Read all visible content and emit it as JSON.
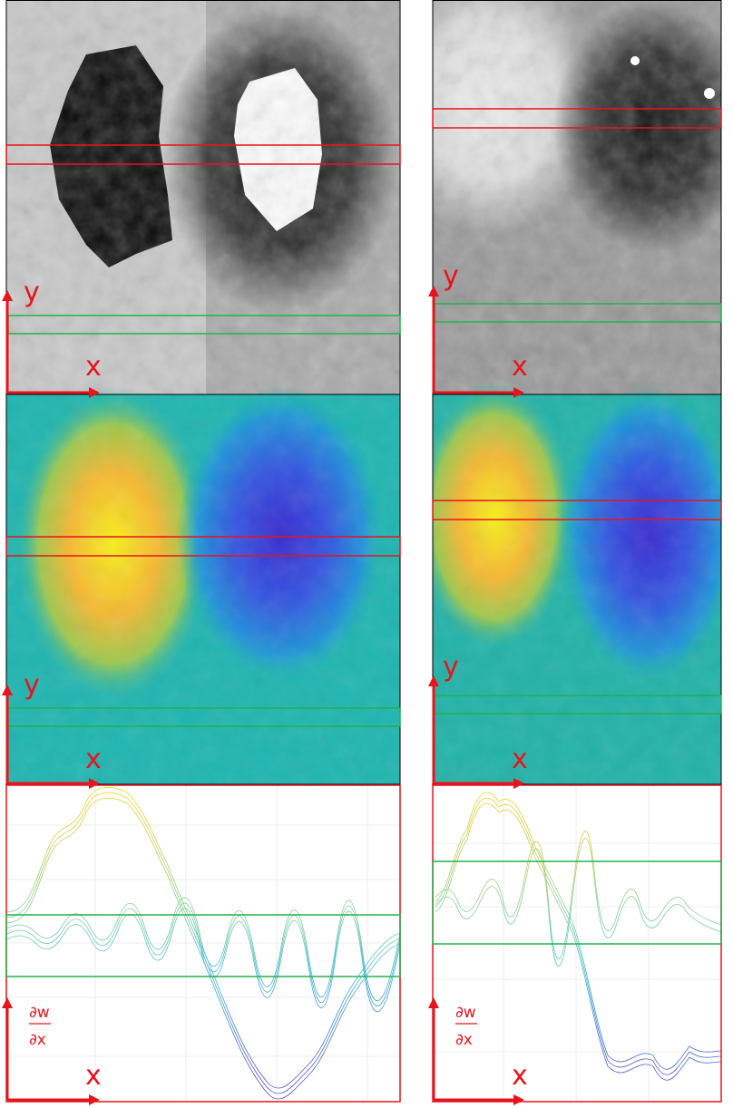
{
  "panels": [
    {
      "image": {
        "y_label": "y",
        "x_label": "x"
      },
      "field": {
        "y_label": "y",
        "x_label": "x"
      },
      "profile": {
        "y_label_num": "∂w",
        "y_label_den": "∂x",
        "x_label": "x"
      }
    },
    {
      "image": {
        "y_label": "y",
        "x_label": "x"
      },
      "field": {
        "y_label": "y",
        "x_label": "x"
      },
      "profile": {
        "y_label_num": "∂w",
        "y_label_den": "∂x",
        "x_label": "x"
      }
    }
  ]
}
